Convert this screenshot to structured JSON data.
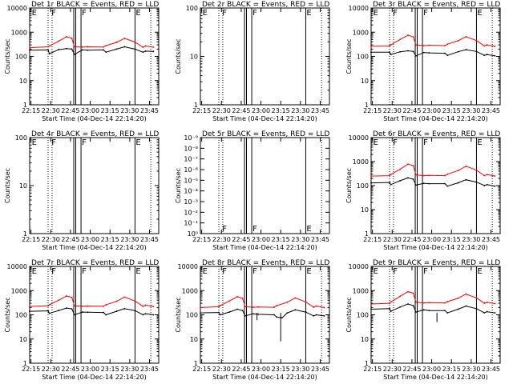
{
  "figure": {
    "x_tick_labels": [
      "22:15",
      "22:30",
      "22:45",
      "23:00",
      "23:15",
      "23:30",
      "23:45"
    ],
    "xlabel": "Start Time (04-Dec-14 22:14:20)",
    "ylabel": "Counts/sec",
    "colors": {
      "events": "#000000",
      "lld": "#ff0000"
    }
  },
  "chart_data": [
    {
      "type": "line",
      "title": "Det 1r BLACK = Events, RED = LLD",
      "xlabel": "Start Time (04-Dec-14 22:14:20)",
      "ylabel": "Counts/sec",
      "xlim": [
        "22:14",
        "23:52"
      ],
      "ylim": [
        1,
        10000
      ],
      "yscale": "log",
      "y_tick_labels": [
        "1",
        "10",
        "100",
        "1000",
        "10000"
      ],
      "has_data": true,
      "series": [
        {
          "color": "#000000",
          "x": [
            "22:14",
            "22:28",
            "22:29",
            "22:36",
            "22:42",
            "22:46",
            "22:48",
            "22:54",
            "22:58",
            "23:10",
            "23:12",
            "23:20",
            "23:26",
            "23:34",
            "23:40",
            "23:42",
            "23:48"
          ],
          "y": [
            180,
            185,
            130,
            190,
            210,
            200,
            120,
            185,
            180,
            185,
            150,
            200,
            250,
            200,
            150,
            165,
            160
          ]
        },
        {
          "color": "#ff0000",
          "x": [
            "22:14",
            "22:28",
            "22:29",
            "22:36",
            "22:42",
            "22:46",
            "22:48",
            "22:54",
            "22:58",
            "23:10",
            "23:12",
            "23:20",
            "23:26",
            "23:34",
            "23:40",
            "23:42",
            "23:48"
          ],
          "y": [
            230,
            250,
            270,
            420,
            650,
            560,
            250,
            245,
            250,
            245,
            280,
            380,
            560,
            390,
            240,
            270,
            240
          ]
        }
      ],
      "gaps": [
        [
          "22:49",
          "22:53"
        ]
      ],
      "vlines_solid": [
        "22:47.5",
        "22:49",
        "22:53",
        "23:34"
      ],
      "vlines_dotted": [
        "22:28",
        "22:31",
        "23:46"
      ],
      "markers": [
        {
          "label": "E",
          "x": "22:15"
        },
        {
          "label": "F",
          "x": "22:30"
        },
        {
          "label": "F",
          "x": "22:53"
        },
        {
          "label": "E",
          "x": "23:34"
        }
      ]
    },
    {
      "type": "line",
      "title": "Det 2r BLACK = Events, RED = LLD",
      "xlabel": "Start Time (04-Dec-14 22:14:20)",
      "ylabel": "Counts/sec",
      "xlim": [
        "22:14",
        "23:52"
      ],
      "ylim": [
        1,
        100
      ],
      "yscale": "log",
      "y_tick_labels": [
        "1",
        "10",
        "100"
      ],
      "has_data": false,
      "series": [],
      "vlines_solid": [
        "22:47.5",
        "22:49",
        "22:53",
        "23:34"
      ],
      "vlines_dotted": [
        "22:28",
        "22:31",
        "23:46"
      ],
      "markers": [
        {
          "label": "E",
          "x": "22:15"
        },
        {
          "label": "F",
          "x": "22:30"
        },
        {
          "label": "F",
          "x": "22:53"
        },
        {
          "label": "E",
          "x": "23:34"
        }
      ]
    },
    {
      "type": "line",
      "title": "Det 3r BLACK = Events, RED = LLD",
      "xlabel": "Start Time (04-Dec-14 22:14:20)",
      "ylabel": "Counts/sec",
      "xlim": [
        "22:14",
        "23:52"
      ],
      "ylim": [
        1,
        10000
      ],
      "yscale": "log",
      "y_tick_labels": [
        "1",
        "10",
        "100",
        "1000",
        "10000"
      ],
      "has_data": true,
      "series": [
        {
          "color": "#000000",
          "x": [
            "22:14",
            "22:28",
            "22:29",
            "22:36",
            "22:42",
            "22:46",
            "22:48",
            "22:54",
            "22:58",
            "23:10",
            "23:12",
            "23:20",
            "23:26",
            "23:34",
            "23:40",
            "23:42",
            "23:48"
          ],
          "y": [
            150,
            150,
            120,
            155,
            170,
            160,
            105,
            145,
            140,
            135,
            110,
            155,
            190,
            160,
            110,
            120,
            105
          ]
        },
        {
          "color": "#ff0000",
          "x": [
            "22:14",
            "22:28",
            "22:29",
            "22:36",
            "22:42",
            "22:46",
            "22:48",
            "22:54",
            "22:58",
            "23:10",
            "23:12",
            "23:20",
            "23:26",
            "23:34",
            "23:40",
            "23:42",
            "23:48"
          ],
          "y": [
            260,
            270,
            300,
            500,
            750,
            640,
            300,
            280,
            290,
            280,
            320,
            440,
            650,
            450,
            270,
            300,
            260
          ]
        }
      ],
      "gaps": [
        [
          "22:49",
          "22:53"
        ]
      ],
      "vlines_solid": [
        "22:47.5",
        "22:49",
        "22:53",
        "23:34"
      ],
      "vlines_dotted": [
        "22:28",
        "22:31",
        "23:46"
      ],
      "markers": [
        {
          "label": "E",
          "x": "22:15"
        },
        {
          "label": "F",
          "x": "22:30"
        },
        {
          "label": "F",
          "x": "22:53"
        },
        {
          "label": "E",
          "x": "23:34"
        }
      ]
    },
    {
      "type": "line",
      "title": "Det 4r BLACK = Events, RED = LLD",
      "xlabel": "Start Time (04-Dec-14 22:14:20)",
      "ylabel": "Counts/sec",
      "xlim": [
        "22:14",
        "23:52"
      ],
      "ylim": [
        1,
        100
      ],
      "yscale": "log",
      "y_tick_labels": [
        "1",
        "10",
        "100"
      ],
      "has_data": false,
      "series": [],
      "vlines_solid": [
        "22:47.5",
        "22:49",
        "22:53",
        "23:34"
      ],
      "vlines_dotted": [
        "22:28",
        "22:31",
        "23:46"
      ],
      "markers": [
        {
          "label": "E",
          "x": "22:15"
        },
        {
          "label": "F",
          "x": "22:30"
        },
        {
          "label": "F",
          "x": "22:53"
        },
        {
          "label": "E",
          "x": "23:34"
        }
      ]
    },
    {
      "type": "line",
      "title": "Det 5r BLACK = Events, RED = LLD",
      "xlabel": "Start Time (04-Dec-14 22:14:20)",
      "ylabel": "Counts/sec",
      "xlim": [
        "22:14",
        "23:52"
      ],
      "ylim": [
        1,
        1e-09
      ],
      "yscale": "log",
      "y_tick_labels": [
        "10⁰",
        "10⁻¹",
        "10⁻²",
        "10⁻³",
        "10⁻⁴",
        "10⁻⁵",
        "10⁻⁶",
        "10⁻⁷",
        "10⁻⁸",
        "10⁻⁹"
      ],
      "has_data": false,
      "series": [],
      "vlines_solid": [
        "22:47.5",
        "22:49",
        "22:53",
        "23:34"
      ],
      "vlines_dotted": [
        "22:28",
        "22:31",
        "23:46"
      ],
      "markers": [
        {
          "label": "F",
          "x": "22:30"
        },
        {
          "label": "F",
          "x": "22:53"
        },
        {
          "label": "E",
          "x": "23:34"
        }
      ]
    },
    {
      "type": "line",
      "title": "Det 6r BLACK = Events, RED = LLD",
      "xlabel": "Start Time (04-Dec-14 22:14:20)",
      "ylabel": "Counts/sec",
      "xlim": [
        "22:14",
        "23:52"
      ],
      "ylim": [
        1,
        10000
      ],
      "yscale": "log",
      "y_tick_labels": [
        "1",
        "10",
        "100",
        "1000",
        "10000"
      ],
      "has_data": true,
      "series": [
        {
          "color": "#000000",
          "x": [
            "22:14",
            "22:28",
            "22:29",
            "22:36",
            "22:42",
            "22:46",
            "22:48",
            "22:54",
            "22:58",
            "23:10",
            "23:12",
            "23:20",
            "23:26",
            "23:34",
            "23:40",
            "23:42",
            "23:48"
          ],
          "y": [
            130,
            135,
            110,
            160,
            210,
            185,
            105,
            125,
            120,
            120,
            95,
            130,
            175,
            140,
            100,
            110,
            95
          ]
        },
        {
          "color": "#ff0000",
          "x": [
            "22:14",
            "22:28",
            "22:29",
            "22:36",
            "22:42",
            "22:46",
            "22:48",
            "22:54",
            "22:58",
            "23:10",
            "23:12",
            "23:20",
            "23:26",
            "23:34",
            "23:40",
            "23:42",
            "23:48"
          ],
          "y": [
            250,
            260,
            290,
            480,
            780,
            680,
            280,
            260,
            265,
            260,
            300,
            420,
            640,
            440,
            260,
            290,
            250
          ]
        }
      ],
      "gaps": [
        [
          "22:49",
          "22:53"
        ]
      ],
      "vlines_solid": [
        "22:47.5",
        "22:49",
        "22:53",
        "23:34"
      ],
      "vlines_dotted": [
        "22:28",
        "22:31",
        "23:46"
      ],
      "markers": [
        {
          "label": "E",
          "x": "22:15"
        },
        {
          "label": "F",
          "x": "22:30"
        },
        {
          "label": "F",
          "x": "22:53"
        },
        {
          "label": "E",
          "x": "23:34"
        }
      ]
    },
    {
      "type": "line",
      "title": "Det 7r BLACK = Events, RED = LLD",
      "xlabel": "Start Time (04-Dec-14 22:14:20)",
      "ylabel": "Counts/sec",
      "xlim": [
        "22:14",
        "23:52"
      ],
      "ylim": [
        1,
        10000
      ],
      "yscale": "log",
      "y_tick_labels": [
        "1",
        "10",
        "100",
        "1000",
        "10000"
      ],
      "has_data": true,
      "series": [
        {
          "color": "#000000",
          "x": [
            "22:14",
            "22:28",
            "22:29",
            "22:36",
            "22:42",
            "22:46",
            "22:48",
            "22:54",
            "22:58",
            "23:10",
            "23:12",
            "23:20",
            "23:26",
            "23:34",
            "23:40",
            "23:42",
            "23:48"
          ],
          "y": [
            140,
            145,
            115,
            150,
            190,
            175,
            100,
            130,
            128,
            125,
            100,
            140,
            180,
            150,
            100,
            110,
            100
          ]
        },
        {
          "color": "#ff0000",
          "x": [
            "22:14",
            "22:28",
            "22:29",
            "22:36",
            "22:42",
            "22:46",
            "22:48",
            "22:54",
            "22:58",
            "23:10",
            "23:12",
            "23:20",
            "23:26",
            "23:34",
            "23:40",
            "23:42",
            "23:48"
          ],
          "y": [
            220,
            235,
            260,
            400,
            600,
            520,
            235,
            225,
            230,
            225,
            260,
            360,
            540,
            370,
            225,
            250,
            220
          ]
        }
      ],
      "gaps": [
        [
          "22:49",
          "22:53"
        ]
      ],
      "vlines_solid": [
        "22:47.5",
        "22:49",
        "22:53",
        "23:34"
      ],
      "vlines_dotted": [
        "22:28",
        "22:31",
        "23:46"
      ],
      "markers": [
        {
          "label": "E",
          "x": "22:15"
        },
        {
          "label": "F",
          "x": "22:30"
        },
        {
          "label": "F",
          "x": "22:53"
        },
        {
          "label": "E",
          "x": "23:34"
        }
      ]
    },
    {
      "type": "line",
      "title": "Det 8r BLACK = Events, RED = LLD",
      "xlabel": "Start Time (04-Dec-14 22:14:20)",
      "ylabel": "Counts/sec",
      "xlim": [
        "22:14",
        "23:52"
      ],
      "ylim": [
        1,
        10000
      ],
      "yscale": "log",
      "y_tick_labels": [
        "1",
        "10",
        "100",
        "1000",
        "10000"
      ],
      "has_data": true,
      "series": [
        {
          "color": "#000000",
          "x": [
            "22:14",
            "22:28",
            "22:29",
            "22:36",
            "22:42",
            "22:46",
            "22:48",
            "22:54",
            "22:58",
            "23:10",
            "23:12",
            "23:16",
            "23:20",
            "23:26",
            "23:34",
            "23:40",
            "23:42",
            "23:48"
          ],
          "y": [
            120,
            125,
            100,
            130,
            170,
            150,
            90,
            110,
            105,
            100,
            80,
            75,
            120,
            160,
            130,
            90,
            100,
            90
          ]
        },
        {
          "color": "#ff0000",
          "x": [
            "22:14",
            "22:28",
            "22:29",
            "22:36",
            "22:42",
            "22:46",
            "22:48",
            "22:54",
            "22:58",
            "23:10",
            "23:12",
            "23:20",
            "23:26",
            "23:34",
            "23:40",
            "23:42",
            "23:48"
          ],
          "y": [
            200,
            215,
            240,
            370,
            560,
            480,
            215,
            205,
            210,
            205,
            240,
            330,
            500,
            340,
            205,
            230,
            200
          ]
        }
      ],
      "gaps": [
        [
          "22:49",
          "22:53"
        ]
      ],
      "dips": [
        {
          "x": "22:57",
          "y": 60
        },
        {
          "x": "23:15",
          "y": 8
        }
      ],
      "vlines_solid": [
        "22:47.5",
        "22:49",
        "22:53",
        "23:34"
      ],
      "vlines_dotted": [
        "22:28",
        "22:31",
        "23:46"
      ],
      "markers": [
        {
          "label": "E",
          "x": "22:15"
        },
        {
          "label": "F",
          "x": "22:30"
        },
        {
          "label": "F",
          "x": "22:53"
        },
        {
          "label": "E",
          "x": "23:34"
        }
      ]
    },
    {
      "type": "line",
      "title": "Det 9r BLACK = Events, RED = LLD",
      "xlabel": "Start Time (04-Dec-14 22:14:20)",
      "ylabel": "Counts/sec",
      "xlim": [
        "22:14",
        "23:52"
      ],
      "ylim": [
        1,
        10000
      ],
      "yscale": "log",
      "y_tick_labels": [
        "1",
        "10",
        "100",
        "1000",
        "10000"
      ],
      "has_data": true,
      "series": [
        {
          "color": "#000000",
          "x": [
            "22:14",
            "22:28",
            "22:29",
            "22:36",
            "22:42",
            "22:46",
            "22:48",
            "22:54",
            "22:58",
            "23:10",
            "23:12",
            "23:20",
            "23:26",
            "23:34",
            "23:40",
            "23:42",
            "23:48"
          ],
          "y": [
            170,
            180,
            140,
            210,
            280,
            240,
            130,
            160,
            150,
            150,
            120,
            170,
            230,
            180,
            120,
            135,
            120
          ]
        },
        {
          "color": "#ff0000",
          "x": [
            "22:14",
            "22:28",
            "22:29",
            "22:36",
            "22:42",
            "22:46",
            "22:48",
            "22:54",
            "22:58",
            "23:10",
            "23:12",
            "23:20",
            "23:26",
            "23:34",
            "23:40",
            "23:42",
            "23:48"
          ],
          "y": [
            280,
            300,
            340,
            580,
            900,
            780,
            330,
            310,
            320,
            310,
            350,
            480,
            720,
            500,
            300,
            330,
            290
          ]
        }
      ],
      "gaps": [
        [
          "22:49",
          "22:53"
        ]
      ],
      "dips": [
        {
          "x": "23:04",
          "y": 50
        }
      ],
      "vlines_solid": [
        "22:47.5",
        "22:49",
        "22:53",
        "23:34"
      ],
      "vlines_dotted": [
        "22:28",
        "22:31",
        "23:46"
      ],
      "markers": [
        {
          "label": "E",
          "x": "22:15"
        },
        {
          "label": "F",
          "x": "22:30"
        },
        {
          "label": "F",
          "x": "22:53"
        },
        {
          "label": "E",
          "x": "23:34"
        }
      ]
    }
  ]
}
